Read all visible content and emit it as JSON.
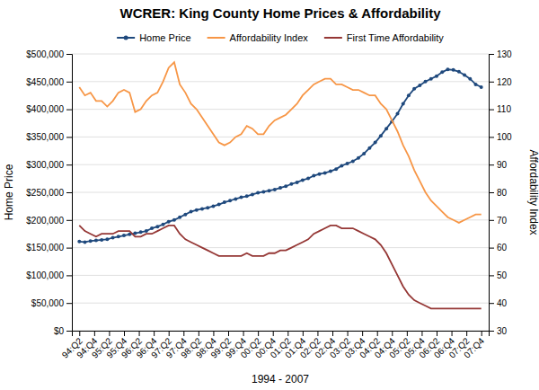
{
  "chart_data": {
    "type": "line",
    "title": "WCRER: King County Home Prices & Affordability",
    "xlabel": "1994 - 2007",
    "ylabel": "Home Price",
    "y2label": "Affordability Index",
    "x": [
      0,
      0.375,
      0.75,
      1.125,
      1.5,
      1.875,
      2.25,
      2.625,
      3,
      3.375,
      3.75,
      4.125,
      4.5,
      4.875,
      5.25,
      5.625,
      6,
      6.375,
      6.75,
      7.125,
      7.5,
      7.875,
      8.25,
      8.625,
      9,
      9.375,
      9.75,
      10.125,
      10.5,
      10.875,
      11.25,
      11.625,
      12,
      12.375,
      12.75,
      13.125,
      13.5,
      13.875,
      14.25,
      14.625,
      15,
      15.375,
      15.75,
      16.125,
      16.5,
      16.875,
      17.25,
      17.625,
      18,
      18.375,
      18.75,
      19.125,
      19.5,
      19.875,
      20.25,
      20.625,
      21,
      21.375,
      21.75,
      22.125,
      22.5,
      22.875,
      23.25,
      23.625,
      24,
      24.375,
      24.75,
      25.125,
      25.5,
      25.875,
      26.25,
      26.625,
      27
    ],
    "xlim": [
      -0.5,
      27.5
    ],
    "xticks": [
      {
        "value": 0,
        "label": "94:Q2"
      },
      {
        "value": 1,
        "label": "94:Q4"
      },
      {
        "value": 2,
        "label": "95:Q2"
      },
      {
        "value": 3,
        "label": "95:Q4"
      },
      {
        "value": 4,
        "label": "96:Q2"
      },
      {
        "value": 5,
        "label": "96:Q4"
      },
      {
        "value": 6,
        "label": "97:Q2"
      },
      {
        "value": 7,
        "label": "97:Q4"
      },
      {
        "value": 8,
        "label": "98:Q2"
      },
      {
        "value": 9,
        "label": "98:Q4"
      },
      {
        "value": 10,
        "label": "99:Q2"
      },
      {
        "value": 11,
        "label": "99:Q4"
      },
      {
        "value": 12,
        "label": "00:Q2"
      },
      {
        "value": 13,
        "label": "00:Q4"
      },
      {
        "value": 14,
        "label": "01:Q2"
      },
      {
        "value": 15,
        "label": "01:Q4"
      },
      {
        "value": 16,
        "label": "02:Q2"
      },
      {
        "value": 17,
        "label": "02:Q4"
      },
      {
        "value": 18,
        "label": "03:Q2"
      },
      {
        "value": 19,
        "label": "03:Q4"
      },
      {
        "value": 20,
        "label": "04:Q2"
      },
      {
        "value": 21,
        "label": "04:Q4"
      },
      {
        "value": 22,
        "label": "05:Q2"
      },
      {
        "value": 23,
        "label": "05:Q4"
      },
      {
        "value": 24,
        "label": "06:Q2"
      },
      {
        "value": 25,
        "label": "06:Q4"
      },
      {
        "value": 26,
        "label": "07:Q2"
      },
      {
        "value": 27,
        "label": "07:Q4"
      }
    ],
    "ylim": [
      0,
      500000
    ],
    "yticks": [
      {
        "value": 0,
        "label": "$0"
      },
      {
        "value": 50000,
        "label": "$50,000"
      },
      {
        "value": 100000,
        "label": "$100,000"
      },
      {
        "value": 150000,
        "label": "$150,000"
      },
      {
        "value": 200000,
        "label": "$200,000"
      },
      {
        "value": 250000,
        "label": "$250,000"
      },
      {
        "value": 300000,
        "label": "$300,000"
      },
      {
        "value": 350000,
        "label": "$350,000"
      },
      {
        "value": 400000,
        "label": "$400,000"
      },
      {
        "value": 450000,
        "label": "$450,000"
      },
      {
        "value": 500000,
        "label": "$500,000"
      }
    ],
    "y2lim": [
      30,
      130
    ],
    "y2ticks": [
      30,
      40,
      50,
      60,
      70,
      80,
      90,
      100,
      110,
      120,
      130
    ],
    "grid": true,
    "legend": "top",
    "series": [
      {
        "name": "Home Price",
        "color": "#1f497d",
        "marker": "circle",
        "values": [
          161000,
          160000,
          162000,
          163000,
          164000,
          165000,
          168000,
          170000,
          172000,
          174000,
          176000,
          178000,
          180000,
          185000,
          188000,
          192000,
          197000,
          200000,
          205000,
          210000,
          215000,
          218000,
          220000,
          222000,
          225000,
          228000,
          232000,
          235000,
          238000,
          241000,
          243000,
          246000,
          249000,
          251000,
          253000,
          255000,
          258000,
          261000,
          265000,
          268000,
          272000,
          275000,
          280000,
          283000,
          285000,
          288000,
          292000,
          298000,
          302000,
          306000,
          312000,
          320000,
          330000,
          340000,
          352000,
          365000,
          378000,
          392000,
          410000,
          425000,
          437000,
          443000,
          450000,
          455000,
          460000,
          467000,
          472000,
          471000,
          468000,
          462000,
          455000,
          445000,
          440000
        ]
      },
      {
        "name": "Affordability Index",
        "color": "#f79646",
        "axis": "y2",
        "values": [
          118,
          115,
          116,
          113,
          113,
          111,
          113,
          116,
          117,
          116,
          109,
          110,
          113,
          115,
          116,
          120,
          125,
          127,
          119,
          116,
          112,
          110,
          107,
          104,
          101,
          98,
          97,
          98,
          100,
          101,
          104,
          103,
          101,
          101,
          104,
          106,
          107,
          108,
          110,
          112,
          115,
          117,
          119,
          120,
          121,
          121,
          119,
          119,
          118,
          117,
          117,
          116,
          115,
          115,
          112,
          110,
          106,
          102,
          97,
          93,
          88,
          84,
          80,
          77,
          75,
          73,
          71,
          70,
          69,
          70,
          71,
          72,
          72
        ]
      },
      {
        "name": "First Time Affordability",
        "color": "#953735",
        "axis": "y2",
        "values": [
          68,
          66,
          65,
          64,
          65,
          65,
          65,
          66,
          66,
          66,
          64,
          64,
          65,
          65,
          66,
          67,
          68,
          68,
          65,
          63,
          62,
          61,
          60,
          59,
          58,
          57,
          57,
          57,
          57,
          57,
          58,
          57,
          57,
          57,
          58,
          58,
          59,
          59,
          60,
          61,
          62,
          63,
          65,
          66,
          67,
          68,
          68,
          67,
          67,
          67,
          66,
          65,
          64,
          63,
          61,
          58,
          54,
          50,
          46,
          43,
          41,
          40,
          39,
          38,
          38,
          38,
          38,
          38,
          38,
          38,
          38,
          38,
          38
        ]
      }
    ]
  }
}
